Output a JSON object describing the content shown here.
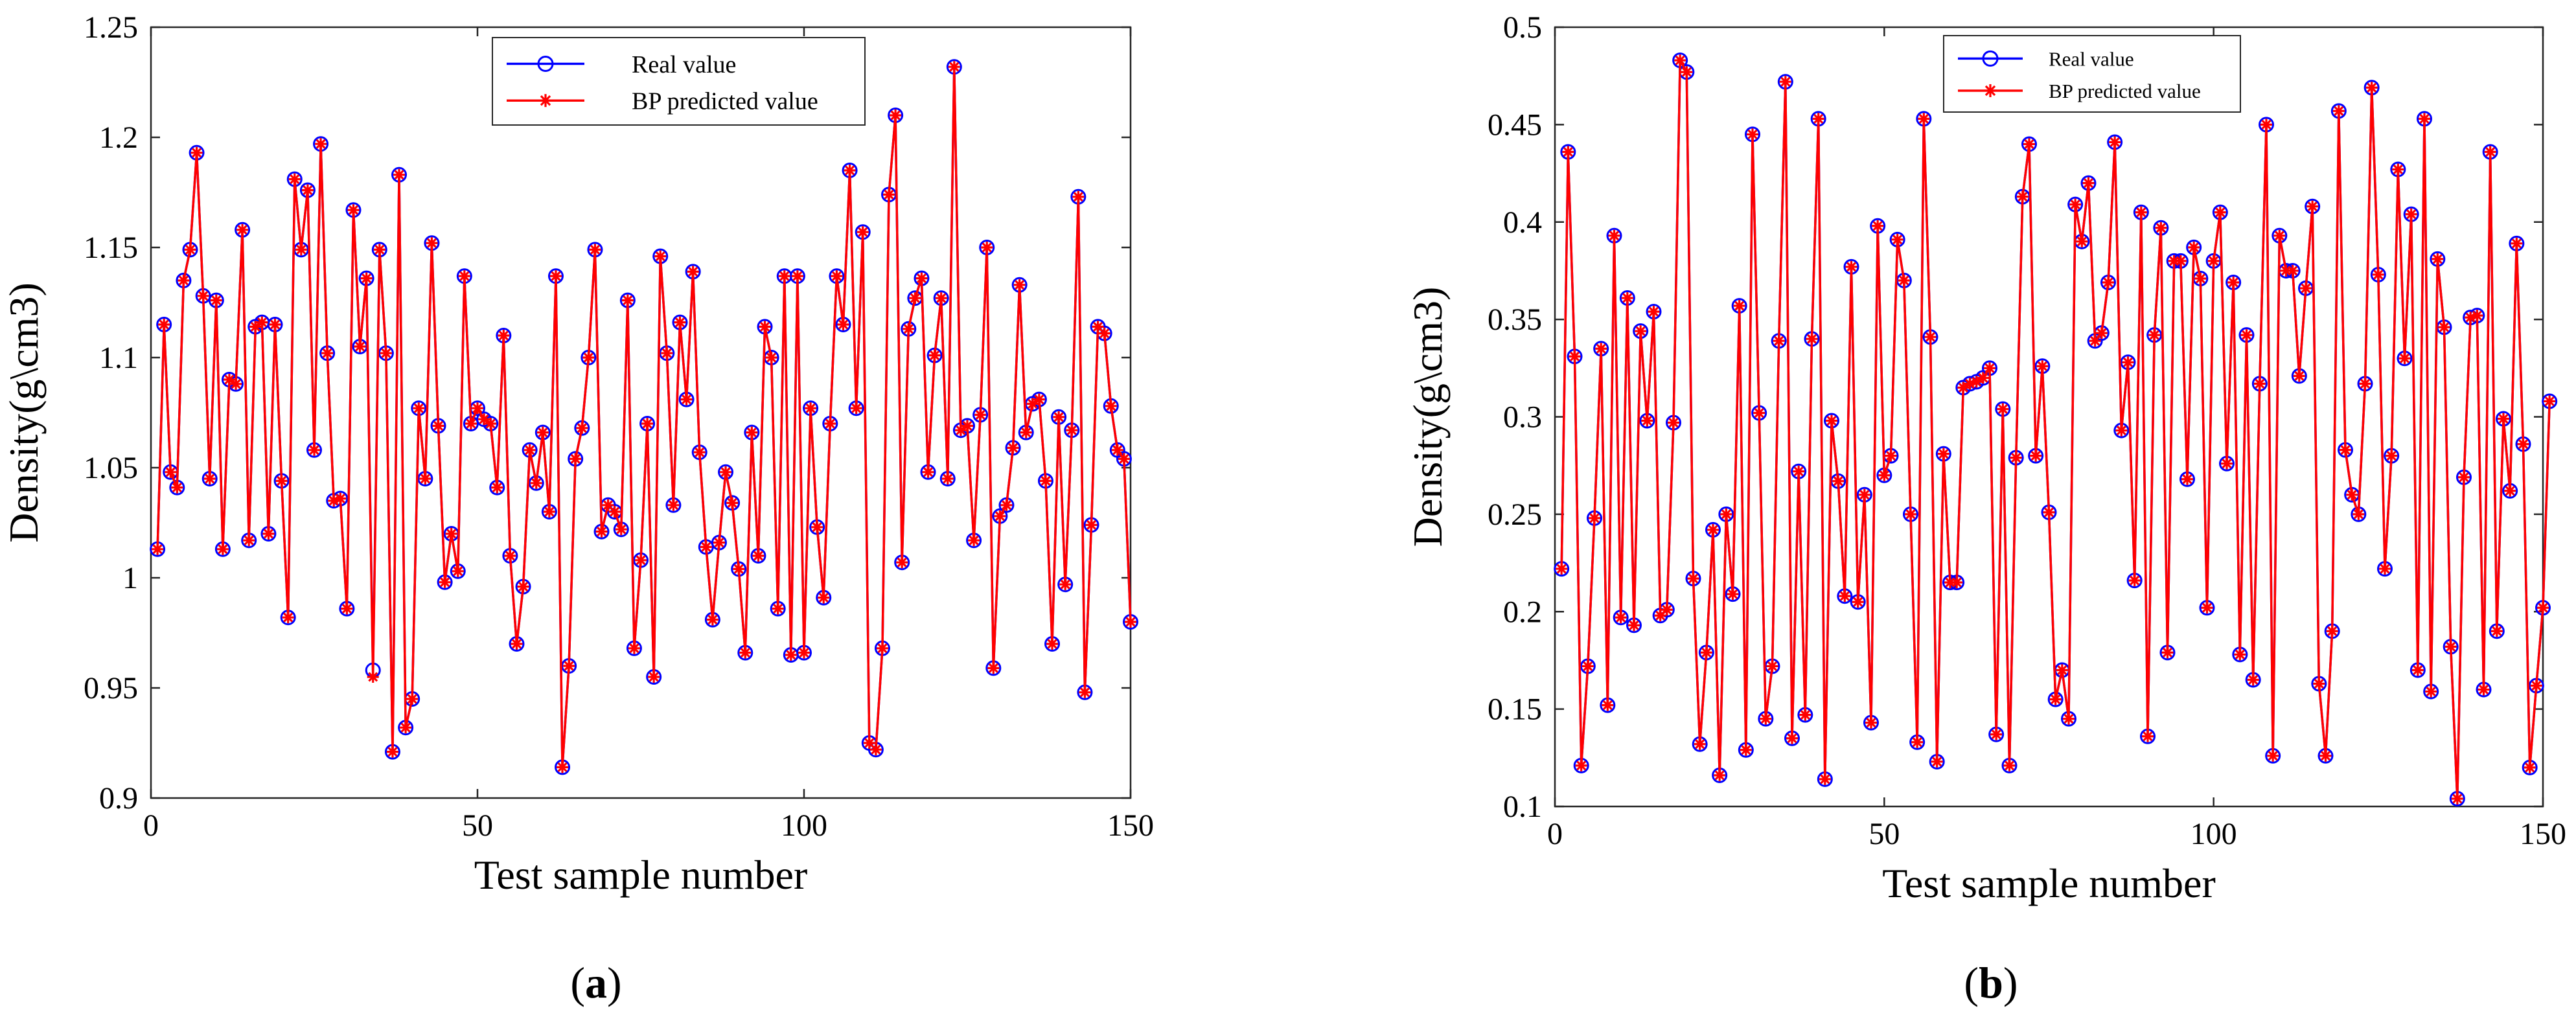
{
  "chart_data": [
    {
      "type": "line",
      "panel_label": "a",
      "xlabel": "Test sample number",
      "ylabel": "Density(g\\cm3)",
      "xlim": [
        0,
        150
      ],
      "ylim": [
        0.9,
        1.25
      ],
      "xticks": [
        0,
        50,
        100,
        150
      ],
      "yticks": [
        0.9,
        0.95,
        1,
        1.05,
        1.1,
        1.15,
        1.2,
        1.25
      ],
      "legend_position": "top-center",
      "series": [
        {
          "name": "Real value",
          "color": "#0000ff",
          "marker": "circle",
          "values": [
            1.013,
            1.115,
            1.048,
            1.041,
            1.135,
            1.149,
            1.193,
            1.128,
            1.045,
            1.126,
            1.013,
            1.09,
            1.088,
            1.158,
            1.017,
            1.114,
            1.116,
            1.02,
            1.115,
            1.044,
            0.982,
            1.181,
            1.149,
            1.176,
            1.058,
            1.197,
            1.102,
            1.035,
            1.036,
            0.986,
            1.167,
            1.105,
            1.136,
            0.958,
            1.149,
            1.102,
            0.921,
            1.183,
            0.932,
            0.945,
            1.077,
            1.045,
            1.152,
            1.069,
            0.998,
            1.02,
            1.003,
            1.137,
            1.07,
            1.077,
            1.072,
            1.07,
            1.041,
            1.11,
            1.01,
            0.97,
            0.996,
            1.058,
            1.043,
            1.066,
            1.03,
            1.137,
            0.914,
            0.96,
            1.054,
            1.068,
            1.1,
            1.149,
            1.021,
            1.033,
            1.03,
            1.022,
            1.126,
            0.968,
            1.008,
            1.07,
            0.955,
            1.146,
            1.102,
            1.033,
            1.116,
            1.081,
            1.139,
            1.057,
            1.014,
            0.981,
            1.016,
            1.048,
            1.034,
            1.004,
            0.966,
            1.066,
            1.01,
            1.114,
            1.1,
            0.986,
            1.137,
            0.965,
            1.137,
            0.966,
            1.077,
            1.023,
            0.991,
            1.07,
            1.137,
            1.115,
            1.185,
            1.077,
            1.157,
            0.925,
            0.922,
            0.968,
            1.174,
            1.21,
            1.007,
            1.113,
            1.127,
            1.136,
            1.048,
            1.101,
            1.127,
            1.045,
            1.232,
            1.067,
            1.069,
            1.017,
            1.074,
            1.15,
            0.959,
            1.028,
            1.033,
            1.059,
            1.133,
            1.066,
            1.079,
            1.081,
            1.044,
            0.97,
            1.073,
            0.997,
            1.067,
            1.173,
            0.948,
            1.024,
            1.114,
            1.111,
            1.078,
            1.058,
            1.054,
            0.98
          ]
        },
        {
          "name": "BP predicted value",
          "color": "#ff0000",
          "marker": "asterisk",
          "values": [
            1.013,
            1.115,
            1.048,
            1.041,
            1.135,
            1.149,
            1.193,
            1.128,
            1.045,
            1.126,
            1.013,
            1.09,
            1.088,
            1.158,
            1.017,
            1.114,
            1.116,
            1.02,
            1.115,
            1.044,
            0.982,
            1.181,
            1.149,
            1.176,
            1.058,
            1.197,
            1.102,
            1.035,
            1.036,
            0.986,
            1.167,
            1.105,
            1.136,
            0.955,
            1.149,
            1.102,
            0.921,
            1.183,
            0.932,
            0.945,
            1.077,
            1.045,
            1.152,
            1.069,
            0.998,
            1.02,
            1.003,
            1.137,
            1.07,
            1.077,
            1.072,
            1.07,
            1.041,
            1.11,
            1.01,
            0.97,
            0.996,
            1.058,
            1.043,
            1.066,
            1.03,
            1.137,
            0.914,
            0.96,
            1.054,
            1.068,
            1.1,
            1.149,
            1.021,
            1.033,
            1.03,
            1.022,
            1.126,
            0.968,
            1.008,
            1.07,
            0.955,
            1.146,
            1.102,
            1.033,
            1.116,
            1.081,
            1.139,
            1.057,
            1.014,
            0.981,
            1.016,
            1.048,
            1.034,
            1.004,
            0.966,
            1.066,
            1.01,
            1.114,
            1.1,
            0.986,
            1.137,
            0.965,
            1.137,
            0.966,
            1.077,
            1.023,
            0.991,
            1.07,
            1.137,
            1.115,
            1.185,
            1.077,
            1.157,
            0.925,
            0.922,
            0.968,
            1.174,
            1.21,
            1.007,
            1.113,
            1.127,
            1.136,
            1.048,
            1.101,
            1.127,
            1.045,
            1.232,
            1.067,
            1.069,
            1.017,
            1.074,
            1.15,
            0.959,
            1.028,
            1.033,
            1.059,
            1.133,
            1.066,
            1.079,
            1.081,
            1.044,
            0.97,
            1.073,
            0.997,
            1.067,
            1.173,
            0.948,
            1.024,
            1.114,
            1.111,
            1.078,
            1.058,
            1.054,
            0.98
          ]
        }
      ]
    },
    {
      "type": "line",
      "panel_label": "b",
      "xlabel": "Test sample number",
      "ylabel": "Density(g\\cm3)",
      "xlim": [
        0,
        150
      ],
      "ylim": [
        0.1,
        0.5
      ],
      "xticks": [
        0,
        50,
        100,
        150
      ],
      "yticks": [
        0.1,
        0.15,
        0.2,
        0.25,
        0.3,
        0.35,
        0.4,
        0.45,
        0.5
      ],
      "legend_position": "top-center",
      "series": [
        {
          "name": "Real value",
          "color": "#0000ff",
          "marker": "circle",
          "values": [
            0.222,
            0.436,
            0.331,
            0.121,
            0.172,
            0.248,
            0.335,
            0.152,
            0.393,
            0.197,
            0.361,
            0.193,
            0.344,
            0.298,
            0.354,
            0.198,
            0.201,
            0.297,
            0.483,
            0.477,
            0.217,
            0.132,
            0.179,
            0.242,
            0.116,
            0.25,
            0.209,
            0.357,
            0.129,
            0.445,
            0.302,
            0.145,
            0.172,
            0.339,
            0.472,
            0.135,
            0.272,
            0.147,
            0.34,
            0.453,
            0.114,
            0.298,
            0.267,
            0.208,
            0.377,
            0.205,
            0.26,
            0.143,
            0.398,
            0.27,
            0.28,
            0.391,
            0.37,
            0.25,
            0.133,
            0.453,
            0.341,
            0.123,
            0.281,
            0.215,
            0.215,
            0.315,
            0.317,
            0.318,
            0.32,
            0.325,
            0.137,
            0.304,
            0.121,
            0.279,
            0.413,
            0.44,
            0.28,
            0.326,
            0.251,
            0.155,
            0.17,
            0.145,
            0.409,
            0.39,
            0.42,
            0.339,
            0.343,
            0.369,
            0.441,
            0.293,
            0.328,
            0.216,
            0.405,
            0.136,
            0.342,
            0.397,
            0.179,
            0.38,
            0.38,
            0.268,
            0.387,
            0.371,
            0.202,
            0.38,
            0.405,
            0.276,
            0.369,
            0.178,
            0.342,
            0.165,
            0.317,
            0.45,
            0.126,
            0.393,
            0.375,
            0.375,
            0.321,
            0.366,
            0.408,
            0.163,
            0.126,
            0.19,
            0.457,
            0.283,
            0.26,
            0.25,
            0.317,
            0.469,
            0.373,
            0.222,
            0.28,
            0.427,
            0.33,
            0.404,
            0.17,
            0.453,
            0.159,
            0.381,
            0.346,
            0.182,
            0.104,
            0.269,
            0.351,
            0.352,
            0.16,
            0.436,
            0.19,
            0.299,
            0.262,
            0.389,
            0.286,
            0.12,
            0.162,
            0.202,
            0.308
          ]
        },
        {
          "name": "BP predicted value",
          "color": "#ff0000",
          "marker": "asterisk",
          "values": [
            0.222,
            0.436,
            0.331,
            0.121,
            0.172,
            0.248,
            0.335,
            0.152,
            0.393,
            0.197,
            0.361,
            0.193,
            0.344,
            0.298,
            0.354,
            0.198,
            0.201,
            0.297,
            0.483,
            0.477,
            0.217,
            0.132,
            0.179,
            0.242,
            0.116,
            0.25,
            0.209,
            0.357,
            0.129,
            0.445,
            0.302,
            0.145,
            0.172,
            0.339,
            0.472,
            0.135,
            0.272,
            0.147,
            0.34,
            0.453,
            0.114,
            0.298,
            0.267,
            0.208,
            0.377,
            0.205,
            0.26,
            0.143,
            0.398,
            0.27,
            0.28,
            0.391,
            0.37,
            0.25,
            0.133,
            0.453,
            0.341,
            0.123,
            0.281,
            0.215,
            0.215,
            0.315,
            0.317,
            0.318,
            0.32,
            0.325,
            0.137,
            0.304,
            0.121,
            0.279,
            0.413,
            0.44,
            0.28,
            0.326,
            0.251,
            0.155,
            0.17,
            0.145,
            0.409,
            0.39,
            0.42,
            0.339,
            0.343,
            0.369,
            0.441,
            0.293,
            0.328,
            0.216,
            0.405,
            0.136,
            0.342,
            0.397,
            0.179,
            0.38,
            0.38,
            0.268,
            0.387,
            0.371,
            0.202,
            0.38,
            0.405,
            0.276,
            0.369,
            0.178,
            0.342,
            0.165,
            0.317,
            0.45,
            0.126,
            0.393,
            0.375,
            0.375,
            0.321,
            0.366,
            0.408,
            0.163,
            0.126,
            0.19,
            0.457,
            0.283,
            0.26,
            0.25,
            0.317,
            0.469,
            0.373,
            0.222,
            0.28,
            0.427,
            0.33,
            0.404,
            0.17,
            0.453,
            0.159,
            0.381,
            0.346,
            0.182,
            0.104,
            0.269,
            0.351,
            0.352,
            0.16,
            0.436,
            0.19,
            0.299,
            0.262,
            0.389,
            0.286,
            0.12,
            0.162,
            0.202,
            0.308
          ]
        }
      ]
    }
  ]
}
